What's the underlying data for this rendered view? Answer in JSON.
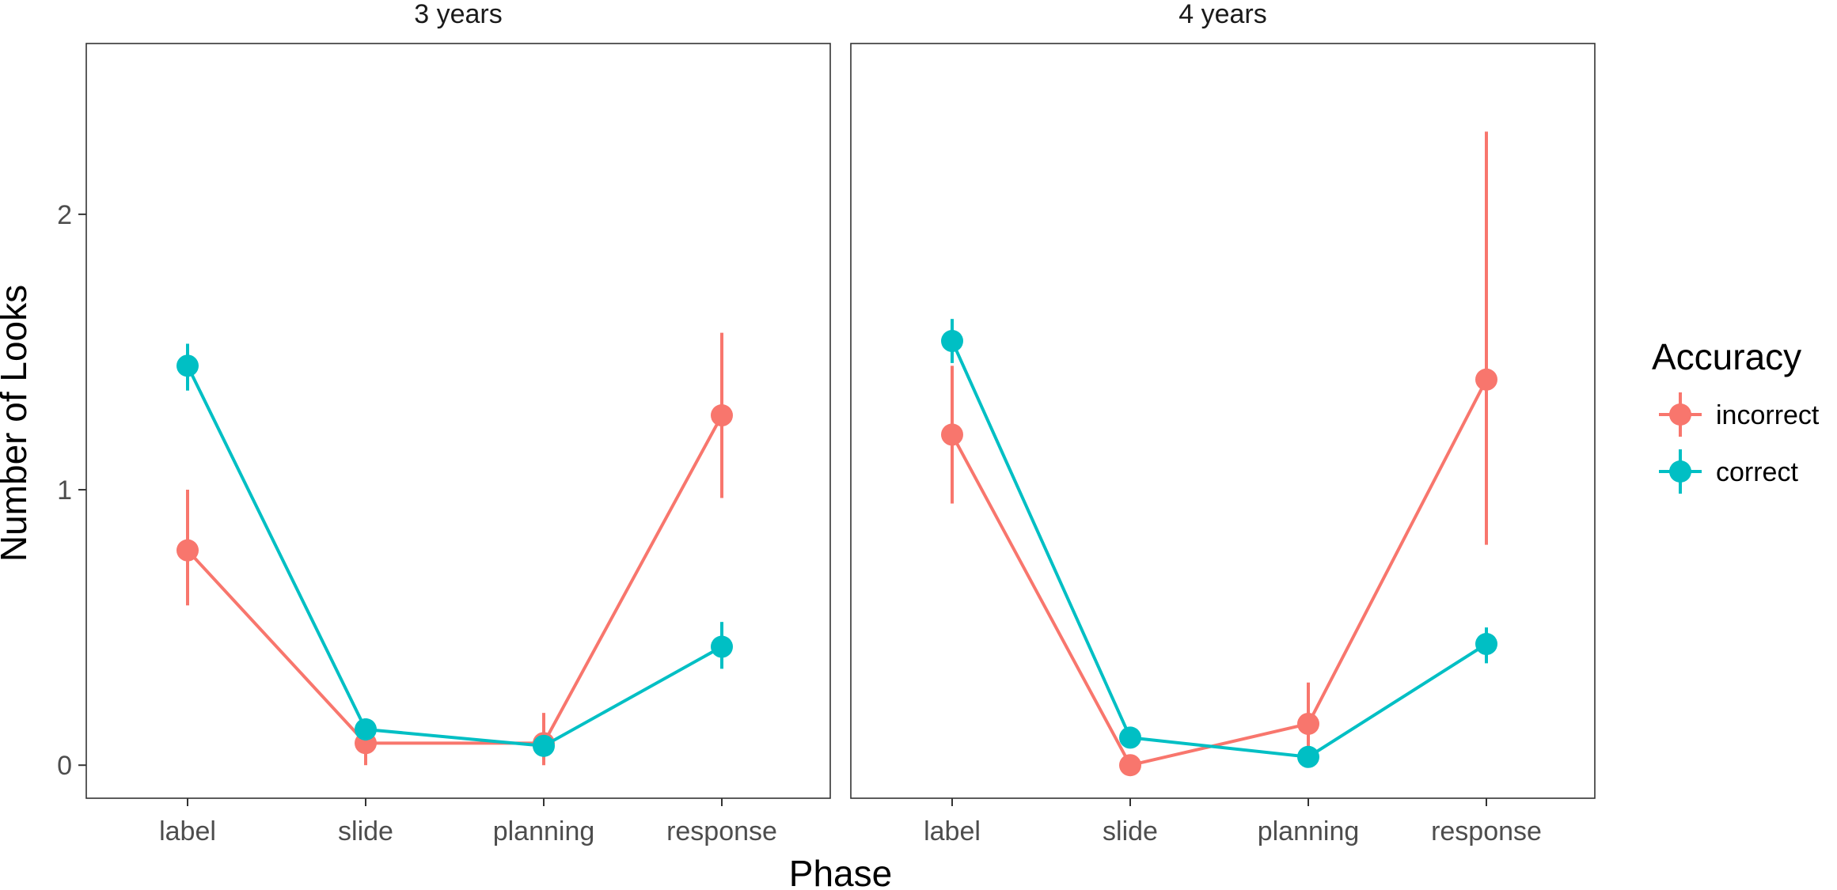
{
  "chart_data": {
    "type": "line",
    "xlabel": "Phase",
    "ylabel": "Number of Looks",
    "categories": [
      "label",
      "slide",
      "planning",
      "response"
    ],
    "ylim": [
      -0.12,
      2.62
    ],
    "yticks": [
      0,
      1,
      2
    ],
    "grid": false,
    "legend": {
      "title": "Accuracy",
      "placement": "right",
      "entries": [
        "incorrect",
        "correct"
      ]
    },
    "series_colors": {
      "incorrect": "#F8766D",
      "correct": "#00BFC4"
    },
    "panels": [
      {
        "strip": "3 years",
        "series": [
          {
            "name": "incorrect",
            "values": [
              0.78,
              0.08,
              0.08,
              1.27
            ],
            "lower": [
              0.58,
              0.0,
              0.0,
              0.97
            ],
            "upper": [
              1.0,
              0.16,
              0.19,
              1.57
            ]
          },
          {
            "name": "correct",
            "values": [
              1.45,
              0.13,
              0.07,
              0.43
            ],
            "lower": [
              1.36,
              0.09,
              0.04,
              0.35
            ],
            "upper": [
              1.53,
              0.17,
              0.1,
              0.52
            ]
          }
        ]
      },
      {
        "strip": "4 years",
        "series": [
          {
            "name": "incorrect",
            "values": [
              1.2,
              0.0,
              0.15,
              1.4
            ],
            "lower": [
              0.95,
              0.0,
              0.0,
              0.8
            ],
            "upper": [
              1.45,
              0.0,
              0.3,
              2.3
            ]
          },
          {
            "name": "correct",
            "values": [
              1.54,
              0.1,
              0.03,
              0.44
            ],
            "lower": [
              1.46,
              0.07,
              0.01,
              0.37
            ],
            "upper": [
              1.62,
              0.13,
              0.05,
              0.5
            ]
          }
        ]
      }
    ]
  }
}
